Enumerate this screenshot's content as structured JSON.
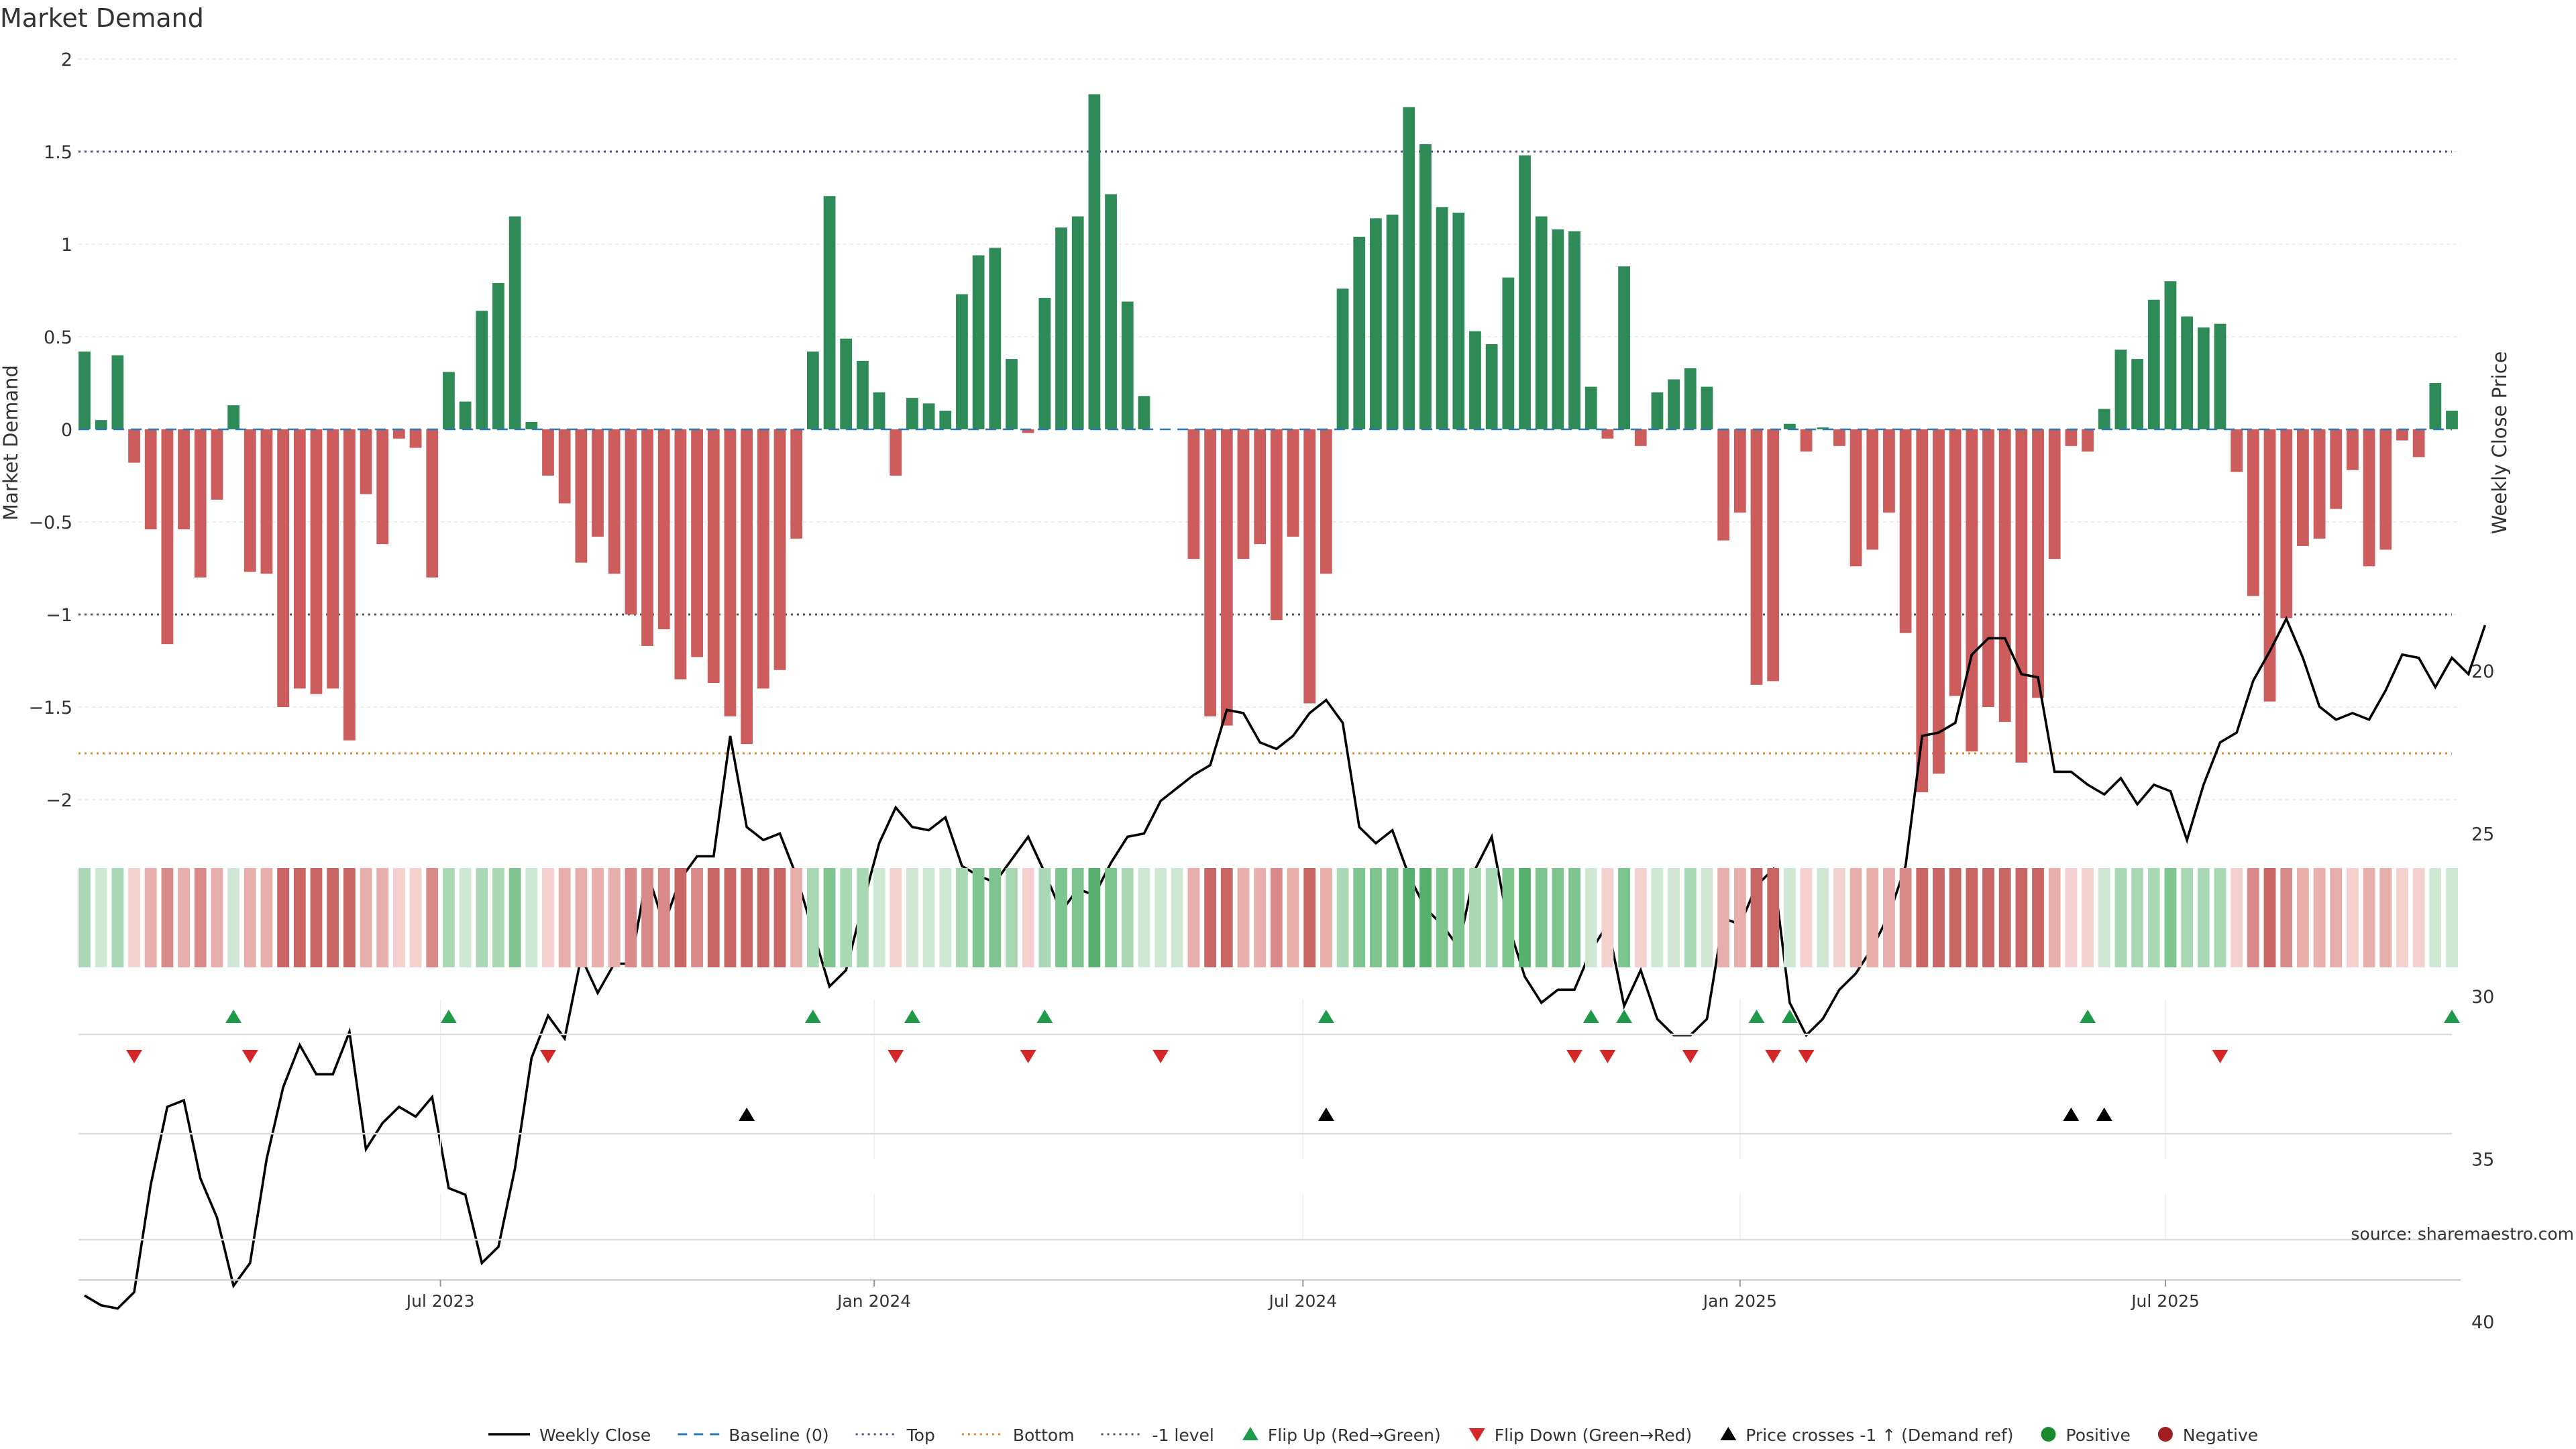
{
  "chart_data": {
    "type": "bar",
    "title": "Market Demand",
    "ylabel": "Market Demand",
    "y2label": "Weekly Close Price",
    "ylim": [
      -2.1,
      2.0
    ],
    "y2lim": [
      17.5,
      40.5
    ],
    "yticks": [
      2,
      1.5,
      1,
      0.5,
      0,
      -0.5,
      -1,
      -1.5,
      -2
    ],
    "ytick_labels": [
      "2",
      "1.5",
      "1",
      "0.5",
      "0",
      "−0.5",
      "−1",
      "−1.5",
      "−2"
    ],
    "y2ticks": [
      40,
      35,
      30,
      25,
      20
    ],
    "y2tick_labels": [
      "40",
      "35",
      "30",
      "25",
      "20"
    ],
    "xticks": [
      {
        "x": 21.5,
        "label": "Jul 2023"
      },
      {
        "x": 47.7,
        "label": "Jan 2024"
      },
      {
        "x": 73.6,
        "label": "Jul 2024"
      },
      {
        "x": 100,
        "label": "Jan 2025"
      },
      {
        "x": 125.7,
        "label": "Jul 2025"
      }
    ],
    "reference_lines": {
      "top": 1.5,
      "bottom": -1.75,
      "minus_one": -1
    },
    "demand": [
      0.42,
      0.05,
      0.4,
      -0.18,
      -0.54,
      -1.16,
      -0.54,
      -0.8,
      -0.38,
      0.13,
      -0.77,
      -0.78,
      -1.5,
      -1.4,
      -1.43,
      -1.4,
      -1.68,
      -0.35,
      -0.62,
      -0.05,
      -0.1,
      -0.8,
      0.31,
      0.15,
      0.64,
      0.79,
      1.15,
      0.04,
      -0.25,
      -0.4,
      -0.72,
      -0.58,
      -0.78,
      -1.0,
      -1.17,
      -1.08,
      -1.35,
      -1.23,
      -1.37,
      -1.55,
      -1.7,
      -1.4,
      -1.3,
      -0.59,
      0.42,
      1.26,
      0.49,
      0.37,
      0.2,
      -0.25,
      0.17,
      0.14,
      0.1,
      0.73,
      0.94,
      0.98,
      0.38,
      -0.02,
      0.71,
      1.09,
      1.15,
      1.81,
      1.27,
      0.69,
      0.18,
      0,
      0,
      -0.7,
      -1.55,
      -1.6,
      -0.7,
      -0.62,
      -1.03,
      -0.58,
      -1.48,
      -0.78,
      0.76,
      1.04,
      1.14,
      1.16,
      1.74,
      1.54,
      1.2,
      1.17,
      0.53,
      0.46,
      0.82,
      1.48,
      1.15,
      1.08,
      1.07,
      0.23,
      -0.05,
      0.88,
      -0.09,
      0.2,
      0.27,
      0.33,
      0.23,
      -0.6,
      -0.45,
      -1.38,
      -1.36,
      0.03,
      -0.12,
      0.01,
      -0.09,
      -0.74,
      -0.65,
      -0.45,
      -1.1,
      -1.96,
      -1.86,
      -1.44,
      -1.74,
      -1.5,
      -1.58,
      -1.8,
      -1.45,
      -0.7,
      -0.09,
      -0.12,
      0.11,
      0.43,
      0.38,
      0.7,
      0.8,
      0.61,
      0.55,
      0.57,
      -0.23,
      -0.9,
      -1.47,
      -1.02,
      -0.63,
      -0.59,
      -0.43,
      -0.22,
      -0.74,
      -0.65,
      -0.06,
      -0.15,
      0.25,
      0.1
    ],
    "weekly_close": [
      39.2,
      39.5,
      39.6,
      39.1,
      35.8,
      33.4,
      33.2,
      35.6,
      36.8,
      38.9,
      38.2,
      35.0,
      32.8,
      31.5,
      32.4,
      32.4,
      31.1,
      34.7,
      33.9,
      33.4,
      33.7,
      33.1,
      35.9,
      36.1,
      38.2,
      37.7,
      35.3,
      31.9,
      30.6,
      31.3,
      28.8,
      29.9,
      29.0,
      29.0,
      26.2,
      27.8,
      26.4,
      25.7,
      25.7,
      22.0,
      24.8,
      25.2,
      25.0,
      26.3,
      28.0,
      29.7,
      29.2,
      27.2,
      25.3,
      24.2,
      24.8,
      24.9,
      24.5,
      26.0,
      26.3,
      26.5,
      25.8,
      25.1,
      26.2,
      27.4,
      26.7,
      26.9,
      25.9,
      25.1,
      25.0,
      24.0,
      23.6,
      23.2,
      22.9,
      21.2,
      21.3,
      22.2,
      22.4,
      22.0,
      21.3,
      20.9,
      21.6,
      24.8,
      25.3,
      24.9,
      26.3,
      27.3,
      27.8,
      28.5,
      26.1,
      25.1,
      27.8,
      29.4,
      30.2,
      29.8,
      29.8,
      28.6,
      27.8,
      30.3,
      29.2,
      30.7,
      31.2,
      31.2,
      30.7,
      27.6,
      27.8,
      26.6,
      26.1,
      30.2,
      31.2,
      30.7,
      29.8,
      29.3,
      28.5,
      27.5,
      26.0,
      22.0,
      21.9,
      21.6,
      19.5,
      19.0,
      19.0,
      20.1,
      20.2,
      23.1,
      23.1,
      23.5,
      23.8,
      23.3,
      24.1,
      23.5,
      23.7,
      25.2,
      23.5,
      22.2,
      21.9,
      20.3,
      19.4,
      18.4,
      19.6,
      21.1,
      21.5,
      21.3,
      21.5,
      20.6,
      19.5,
      19.6,
      20.5,
      19.6,
      20.1,
      18.6
    ],
    "flip_up": [
      9,
      22,
      44,
      50,
      58,
      75,
      91,
      93,
      101,
      103,
      121,
      143
    ],
    "flip_down": [
      3,
      10,
      28,
      49,
      57,
      65,
      90,
      92,
      97,
      102,
      104,
      129
    ],
    "price_cross": [
      40,
      75,
      120,
      122
    ],
    "legend": [
      {
        "label": "Weekly Close",
        "kind": "line",
        "color": "#000000"
      },
      {
        "label": "Baseline (0)",
        "kind": "dash",
        "color": "#2a7ab8"
      },
      {
        "label": "Top",
        "kind": "dot",
        "color": "#4b4d8c"
      },
      {
        "label": "Bottom",
        "kind": "dot",
        "color": "#d98a2b"
      },
      {
        "label": "-1 level",
        "kind": "dot",
        "color": "#555555"
      },
      {
        "label": "Flip Up (Red→Green)",
        "kind": "tri-up",
        "color": "#1f9a4a"
      },
      {
        "label": "Flip Down (Green→Red)",
        "kind": "tri-down",
        "color": "#d62728"
      },
      {
        "label": "Price crosses -1 ↑ (Demand ref)",
        "kind": "tri-up",
        "color": "#000000"
      },
      {
        "label": "Positive",
        "kind": "dot-marker",
        "color": "#1a8a2e"
      },
      {
        "label": "Negative",
        "kind": "dot-marker",
        "color": "#a11d21"
      }
    ],
    "source": "source: sharemaestro.com"
  },
  "colors": {
    "positive": "#2e8b57",
    "negative": "#cd5c5c",
    "baseline": "#2a7ab8",
    "top": "#4b4d8c",
    "bottom": "#d98a2b",
    "minus_one": "#555555"
  }
}
